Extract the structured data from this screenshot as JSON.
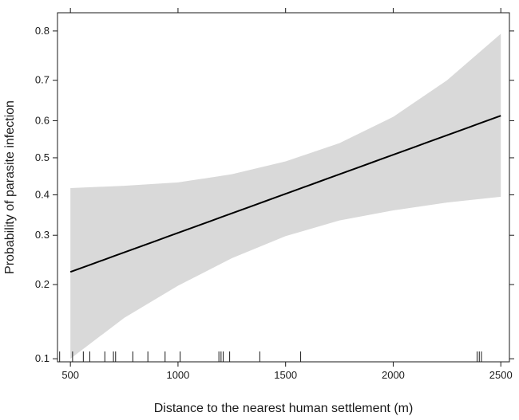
{
  "chart_data": {
    "type": "line",
    "title": "",
    "xlabel": "Distance to the nearest human settlement (m)",
    "ylabel": "Probability of parasite infection",
    "xlim": [
      440,
      2540
    ],
    "ylim": [
      0.097,
      0.83
    ],
    "y_scale": "logit",
    "grid": false,
    "x_ticks": [
      500,
      1000,
      1500,
      2000,
      2500
    ],
    "x_tick_labels": [
      "500",
      "1000",
      "1500",
      "2000",
      "2500"
    ],
    "y_ticks": [
      0.1,
      0.2,
      0.3,
      0.4,
      0.5,
      0.6,
      0.7,
      0.8
    ],
    "y_tick_labels": [
      "0.1",
      "0.2",
      "0.3",
      "0.4",
      "0.5",
      "0.6",
      "0.7",
      "0.8"
    ],
    "fit": {
      "x": [
        500,
        2500
      ],
      "y": [
        0.223,
        0.613
      ]
    },
    "confidence_band": {
      "x": [
        500,
        750,
        1000,
        1250,
        1500,
        1750,
        2000,
        2250,
        2500
      ],
      "lower": [
        0.1,
        0.148,
        0.198,
        0.25,
        0.298,
        0.335,
        0.36,
        0.38,
        0.395
      ],
      "upper": [
        0.418,
        0.424,
        0.433,
        0.455,
        0.49,
        0.54,
        0.61,
        0.7,
        0.795
      ]
    },
    "rug_x": [
      450,
      510,
      560,
      590,
      660,
      700,
      710,
      790,
      860,
      940,
      1010,
      1190,
      1200,
      1210,
      1240,
      1380,
      1570,
      2390,
      2400,
      2410
    ],
    "colors": {
      "line": "#000000",
      "band": "#d9d9d9",
      "axis": "#1a1a1a"
    }
  }
}
